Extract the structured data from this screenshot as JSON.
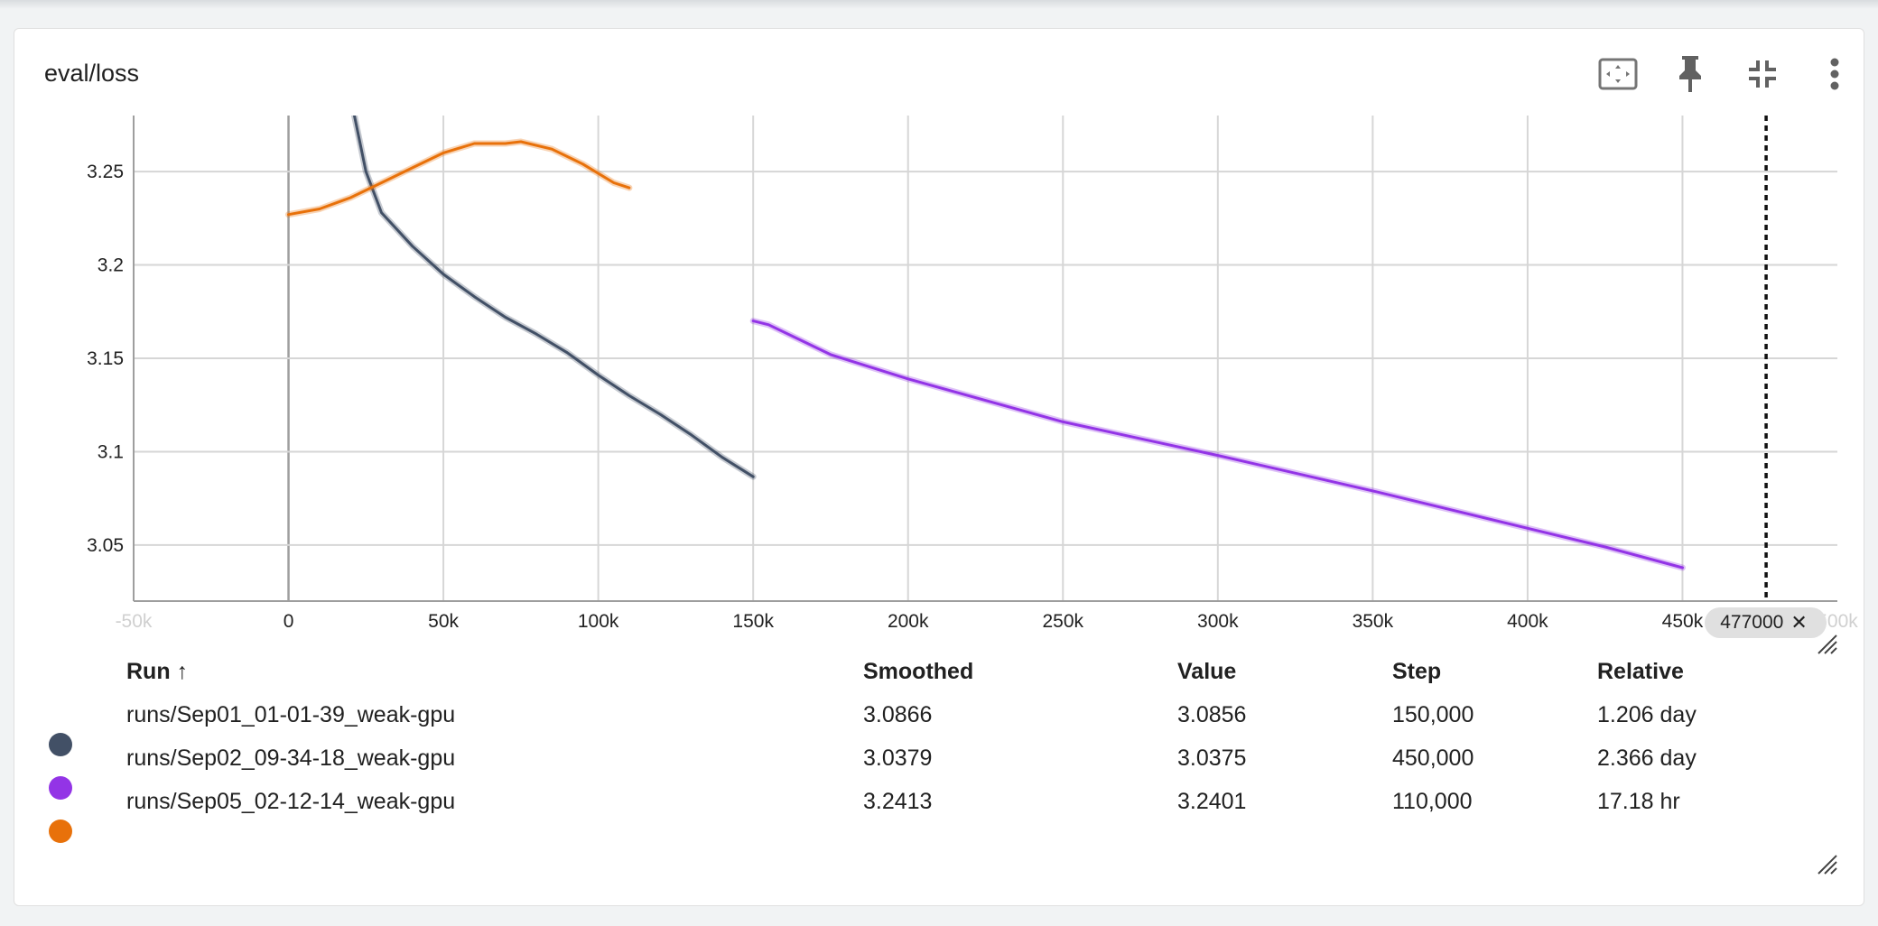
{
  "card": {
    "title": "eval/loss"
  },
  "toolbar": {
    "icons": [
      "fit-to-data-icon",
      "pin-icon",
      "collapse-icon",
      "more-vert-icon"
    ]
  },
  "chart_data": {
    "type": "line",
    "title": "eval/loss",
    "xlabel": "",
    "ylabel": "",
    "xlim": [
      -50000,
      500000
    ],
    "ylim": [
      3.02,
      3.28
    ],
    "x_ticks": [
      {
        "value": -50000,
        "label": "-50k",
        "faded": true
      },
      {
        "value": 0,
        "label": "0"
      },
      {
        "value": 50000,
        "label": "50k"
      },
      {
        "value": 100000,
        "label": "100k"
      },
      {
        "value": 150000,
        "label": "150k"
      },
      {
        "value": 200000,
        "label": "200k"
      },
      {
        "value": 250000,
        "label": "250k"
      },
      {
        "value": 300000,
        "label": "300k"
      },
      {
        "value": 350000,
        "label": "350k"
      },
      {
        "value": 400000,
        "label": "400k"
      },
      {
        "value": 450000,
        "label": "450k"
      },
      {
        "value": 500000,
        "label": "500k",
        "faded": true
      }
    ],
    "y_ticks": [
      {
        "value": 3.05,
        "label": "3.05"
      },
      {
        "value": 3.1,
        "label": "3.1"
      },
      {
        "value": 3.15,
        "label": "3.15"
      },
      {
        "value": 3.2,
        "label": "3.2"
      },
      {
        "value": 3.25,
        "label": "3.25"
      }
    ],
    "grid": true,
    "step_marker": {
      "value": 477000,
      "label": "477000"
    },
    "series": [
      {
        "name": "runs/Sep01_01-01-39_weak-gpu",
        "color": "#425066",
        "points": [
          [
            18000,
            3.3
          ],
          [
            20000,
            3.29
          ],
          [
            25000,
            3.25
          ],
          [
            30000,
            3.228
          ],
          [
            40000,
            3.21
          ],
          [
            50000,
            3.195
          ],
          [
            60000,
            3.183
          ],
          [
            70000,
            3.172
          ],
          [
            80000,
            3.163
          ],
          [
            90000,
            3.153
          ],
          [
            100000,
            3.141
          ],
          [
            110000,
            3.13
          ],
          [
            120000,
            3.12
          ],
          [
            130000,
            3.109
          ],
          [
            140000,
            3.097
          ],
          [
            150000,
            3.0866
          ]
        ]
      },
      {
        "name": "runs/Sep02_09-34-18_weak-gpu",
        "color": "#9334e6",
        "points": [
          [
            150000,
            3.17
          ],
          [
            155000,
            3.168
          ],
          [
            175000,
            3.152
          ],
          [
            200000,
            3.139
          ],
          [
            250000,
            3.116
          ],
          [
            300000,
            3.098
          ],
          [
            350000,
            3.079
          ],
          [
            400000,
            3.059
          ],
          [
            425000,
            3.049
          ],
          [
            450000,
            3.0379
          ]
        ]
      },
      {
        "name": "runs/Sep05_02-12-14_weak-gpu",
        "color": "#e8710a",
        "points": [
          [
            0,
            3.227
          ],
          [
            10000,
            3.23
          ],
          [
            20000,
            3.236
          ],
          [
            30000,
            3.244
          ],
          [
            40000,
            3.252
          ],
          [
            50000,
            3.26
          ],
          [
            60000,
            3.265
          ],
          [
            70000,
            3.265
          ],
          [
            75000,
            3.266
          ],
          [
            85000,
            3.262
          ],
          [
            95000,
            3.254
          ],
          [
            105000,
            3.244
          ],
          [
            110000,
            3.2413
          ]
        ]
      }
    ]
  },
  "table": {
    "headers": {
      "run": "Run",
      "sort_arrow": "↑",
      "smoothed": "Smoothed",
      "value": "Value",
      "step": "Step",
      "relative": "Relative"
    },
    "rows": [
      {
        "color": "#425066",
        "run": "runs/Sep01_01-01-39_weak-gpu",
        "smoothed": "3.0866",
        "value": "3.0856",
        "step": "150,000",
        "relative": "1.206 day"
      },
      {
        "color": "#9334e6",
        "run": "runs/Sep02_09-34-18_weak-gpu",
        "smoothed": "3.0379",
        "value": "3.0375",
        "step": "450,000",
        "relative": "2.366 day"
      },
      {
        "color": "#e8710a",
        "run": "runs/Sep05_02-12-14_weak-gpu",
        "smoothed": "3.2413",
        "value": "3.2401",
        "step": "110,000",
        "relative": "17.18 hr"
      }
    ]
  }
}
